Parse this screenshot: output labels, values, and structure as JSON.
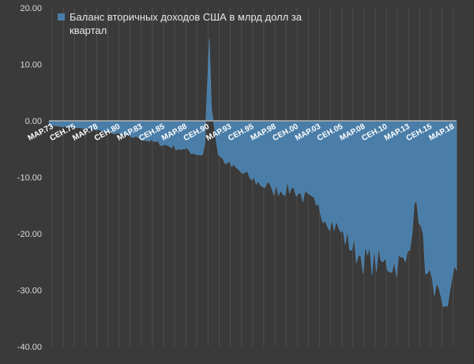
{
  "chart_data": {
    "type": "area",
    "series": [
      {
        "name": "Баланс вторичных доходов США в млрд долл за квартал",
        "color": "#4a7ea8"
      }
    ],
    "ylim": [
      -40,
      20
    ],
    "yticks": [
      "20.00",
      "10.00",
      "0.00",
      "-10.00",
      "-20.00",
      "-30.00",
      "-40.00"
    ],
    "ytick_values": [
      20,
      10,
      0,
      -10,
      -20,
      -30,
      -40
    ],
    "xtick_labels": [
      "МАР.73",
      "СЕН.75",
      "МАР.78",
      "СЕН.80",
      "МАР.83",
      "СЕН.85",
      "МАР.88",
      "СЕН.90",
      "МАР.93",
      "СЕН.95",
      "МАР.98",
      "СЕН.00",
      "МАР.03",
      "СЕН.05",
      "МАР.08",
      "СЕН.10",
      "МАР.13",
      "СЕН.15",
      "МАР.18"
    ],
    "grid": "vertical",
    "legend": "top-left",
    "key_points": [
      {
        "date": "1973-03",
        "value": -0.8
      },
      {
        "date": "1978-03",
        "value": -1.5
      },
      {
        "date": "1983-03",
        "value": -3
      },
      {
        "date": "1988-03",
        "value": -5
      },
      {
        "date": "1990-06",
        "value": -6
      },
      {
        "date": "1990-09",
        "value": -4
      },
      {
        "date": "1991-03",
        "value": 14.5
      },
      {
        "date": "1991-06",
        "value": 2
      },
      {
        "date": "1992-03",
        "value": -6
      },
      {
        "date": "1993-03",
        "value": -7.5
      },
      {
        "date": "1995-09",
        "value": -10
      },
      {
        "date": "1998-03",
        "value": -12
      },
      {
        "date": "2000-09",
        "value": -12
      },
      {
        "date": "2003-03",
        "value": -15
      },
      {
        "date": "2005-09",
        "value": -19
      },
      {
        "date": "2008-03",
        "value": -24
      },
      {
        "date": "2010-09",
        "value": -25
      },
      {
        "date": "2013-03",
        "value": -25
      },
      {
        "date": "2014-06",
        "value": -14
      },
      {
        "date": "2015-09",
        "value": -27
      },
      {
        "date": "2016-06",
        "value": -31
      },
      {
        "date": "2017-06",
        "value": -33
      },
      {
        "date": "2018-03",
        "value": -30
      },
      {
        "date": "2018-12",
        "value": -26.5
      }
    ]
  }
}
